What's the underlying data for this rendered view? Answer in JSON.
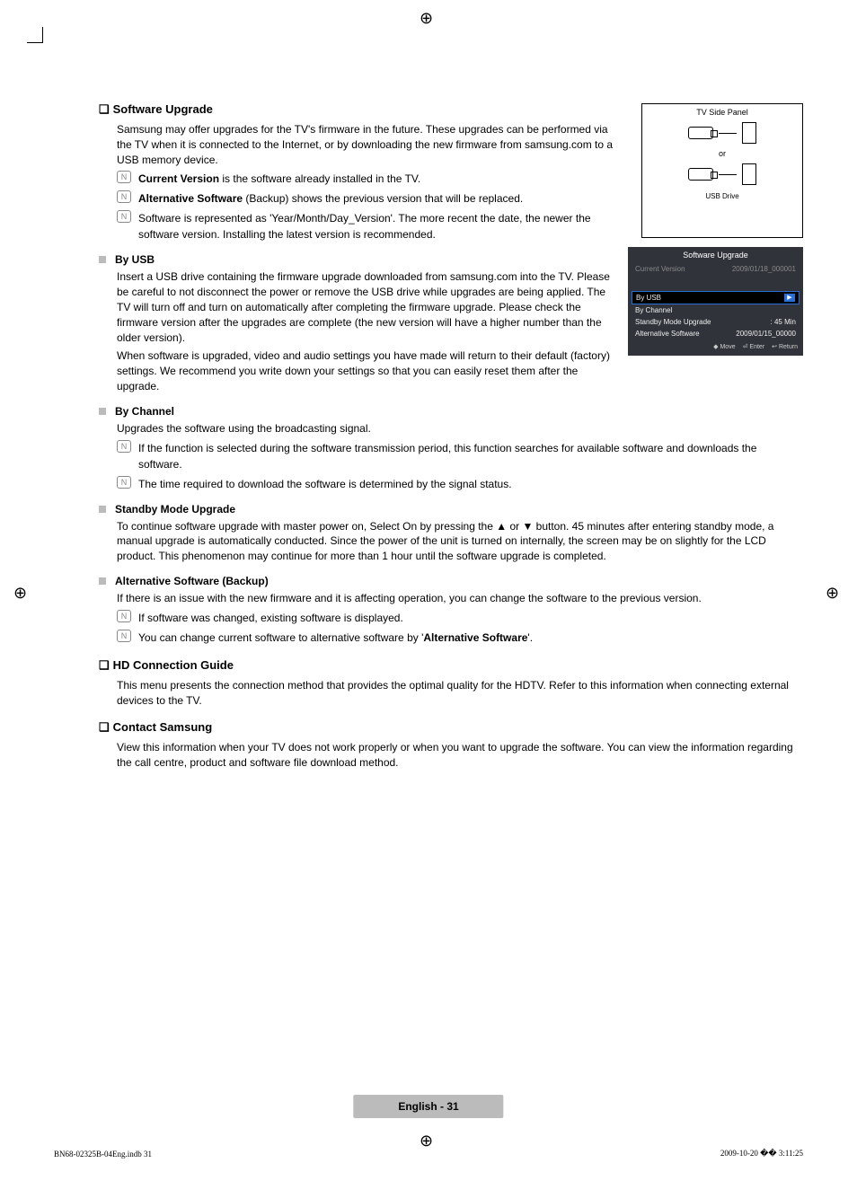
{
  "regmark_glyph": "⊕",
  "sections": {
    "software_upgrade": {
      "heading": "Software Upgrade",
      "intro": "Samsung may offer upgrades for the TV's firmware in the future. These upgrades can be performed via the TV when it is connected to the Internet, or by downloading the new firmware from samsung.com to a USB memory device.",
      "notes": [
        {
          "bold": "Current Version",
          "rest": " is the software already installed in the TV."
        },
        {
          "bold": "Alternative Software",
          "rest": " (Backup) shows the previous version that will be replaced."
        },
        {
          "bold": "",
          "rest": "Software is represented as 'Year/Month/Day_Version'. The more recent the date, the newer the software version. Installing the latest version is recommended."
        }
      ],
      "by_usb": {
        "heading": "By USB",
        "p1": "Insert a USB drive containing the firmware upgrade downloaded from samsung.com into the TV. Please be careful to not disconnect the power or remove the USB drive while upgrades are being applied. The TV will turn off and turn on automatically after completing the firmware upgrade. Please check the firmware version after the upgrades are complete (the new version will have a higher number than the older version).",
        "p2": "When software is upgraded, video and audio settings you have made will return to their default (factory) settings. We recommend you write down your settings so that you can easily reset them after the upgrade."
      },
      "by_channel": {
        "heading": "By Channel",
        "p1": "Upgrades the software using the broadcasting signal.",
        "notes": [
          "If the function is selected during the software transmission period, this function searches for available software and downloads the software.",
          "The time required to download the software is determined by the signal status."
        ]
      },
      "standby": {
        "heading": "Standby Mode Upgrade",
        "p1": "To continue software upgrade with master power on, Select On by pressing the ▲ or ▼ button. 45 minutes after entering standby mode, a manual upgrade is automatically conducted. Since the power of the unit is turned on internally, the screen may be on slightly for the LCD product. This phenomenon may continue for more than 1 hour until the software upgrade is completed."
      },
      "alt_software": {
        "heading": "Alternative Software (Backup)",
        "p1": "If there is an issue with the new firmware and it is affecting operation, you can change the software to the previous version.",
        "notes": [
          "If software was changed, existing software is displayed.",
          "You can change current software to alternative software by 'Alternative Software'."
        ],
        "alt_sw_bold": "Alternative Software"
      }
    },
    "hd_guide": {
      "heading": "HD Connection Guide",
      "p1": "This menu presents the connection method that provides the optimal quality for the HDTV. Refer to this information when connecting external devices to the TV."
    },
    "contact": {
      "heading": "Contact Samsung",
      "p1": "View this information when your TV does not work properly or when you want to upgrade the software. You can view the information regarding the call centre, product and software file download method."
    }
  },
  "side_panel": {
    "title": "TV Side Panel",
    "or": "or",
    "usb_drive": "USB Drive"
  },
  "osd": {
    "title": "Software Upgrade",
    "rows": {
      "current_version_label": "Current Version",
      "current_version_value": "2009/01/18_000001",
      "by_usb": "By USB",
      "by_channel": "By Channel",
      "standby_label": "Standby Mode Upgrade",
      "standby_value": ": 45 Min",
      "alt_label": "Alternative Software",
      "alt_value": "2009/01/15_00000"
    },
    "footer": {
      "move": "Move",
      "enter": "Enter",
      "return": "Return"
    },
    "arrow_glyph": "▶"
  },
  "icons": {
    "note_glyph": "N",
    "section_bullet": "❏",
    "sub_bullet_color": "#bbbbbb",
    "move_glyph": "◆",
    "enter_glyph": "⏎",
    "return_glyph": "↩"
  },
  "footer": {
    "pill": "English - 31",
    "left": "BN68-02325B-04Eng.indb   31",
    "right": "2009-10-20   �� 3:11:25"
  },
  "colors": {
    "osd_bg": "#30343a",
    "osd_highlight_border": "#2a6fd6",
    "pill_bg": "#bbbbbb",
    "text": "#000000"
  }
}
